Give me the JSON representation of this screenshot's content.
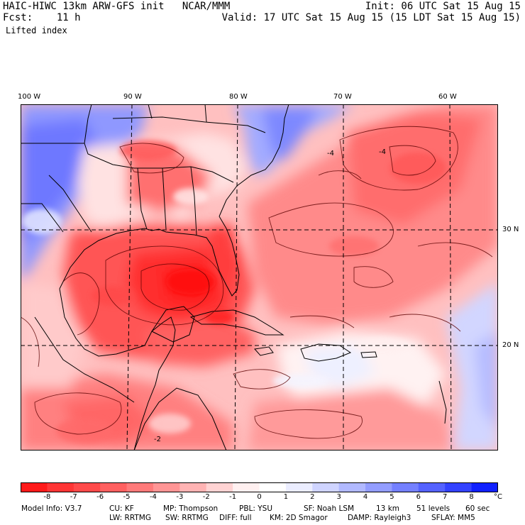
{
  "header": {
    "line1_left": "HAIC-HIWC 13km ARW-GFS init   NCAR/MMM",
    "line1_right": "Init: 06 UTC Sat 15 Aug 15",
    "line2_left": "Fcst:    11 h",
    "line2_right": "Valid: 17 UTC Sat 15 Aug 15 (15 LDT Sat 15 Aug 15)",
    "field": "Lifted index"
  },
  "map": {
    "lon_labels": [
      "100 W",
      "90 W",
      "80 W",
      "70 W",
      "60 W"
    ],
    "lat_labels": [
      "30 N",
      "20 N"
    ],
    "contour_labels": [
      "-4",
      "-4",
      "-2"
    ]
  },
  "colorbar": {
    "tick_labels": [
      "-8",
      "-7",
      "-6",
      "-5",
      "-4",
      "-3",
      "-2",
      "-1",
      "0",
      "1",
      "2",
      "3",
      "4",
      "5",
      "6",
      "7",
      "8"
    ],
    "unit": "°C",
    "colors": [
      "#ff1a1a",
      "#ff3535",
      "#ff4a4a",
      "#ff6060",
      "#ff7a7a",
      "#ff9595",
      "#ffb3b3",
      "#ffd3d3",
      "#fff0f0",
      "#ffffff",
      "#ebedff",
      "#cfd4ff",
      "#b1b9ff",
      "#939dff",
      "#7480ff",
      "#5462ff",
      "#3342ff",
      "#1020ff"
    ]
  },
  "model_info": {
    "line1": [
      "Model Info: V3.7",
      "CU: KF",
      "MP: Thompson",
      "PBL: YSU",
      "SF: Noah LSM",
      "13 km",
      "51 levels",
      "60 sec"
    ],
    "line2": [
      "LW: RRTMG",
      "SW: RRTMG",
      "DIFF: full",
      "KM: 2D Smagor",
      "DAMP: Rayleigh3",
      "SFLAY: MM5"
    ]
  }
}
